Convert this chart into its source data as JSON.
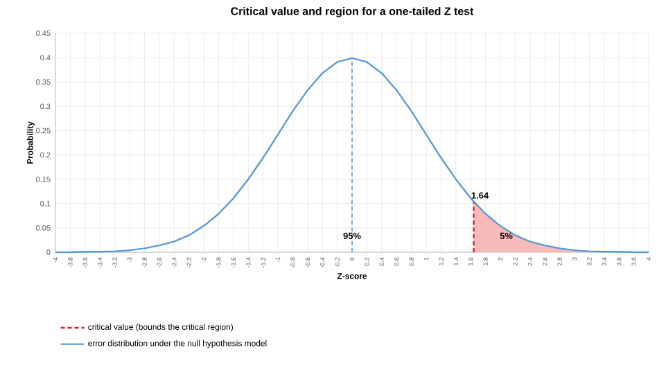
{
  "chart_data": {
    "type": "line",
    "title": "Critical value and region for a one-tailed Z test",
    "xlabel": "Z-score",
    "ylabel": "Probability",
    "xlim": [
      -4,
      4
    ],
    "ylim": [
      0,
      0.45
    ],
    "xticks": [
      -4,
      -3.8,
      -3.6,
      -3.4,
      -3.2,
      -3,
      -2.8,
      -2.6,
      -2.4,
      -2.2,
      -2,
      -1.8,
      -1.6,
      -1.4,
      -1.2,
      -1,
      -0.8,
      -0.6,
      -0.4,
      -0.2,
      0,
      0.2,
      0.4,
      0.6,
      0.8,
      1,
      1.2,
      1.4,
      1.6,
      1.8,
      2,
      2.2,
      2.4,
      2.6,
      2.8,
      3,
      3.2,
      3.4,
      3.6,
      3.8,
      4
    ],
    "yticks": [
      0,
      0.05,
      0.1,
      0.15,
      0.2,
      0.25,
      0.3,
      0.35,
      0.4,
      0.45
    ],
    "grid": true,
    "legend": "bottom",
    "series": [
      {
        "type": "area",
        "color": "#f7b9b9",
        "x": [
          1.64,
          1.8,
          2,
          2.2,
          2.4,
          2.6,
          2.8,
          3,
          3.2,
          3.4,
          3.6,
          3.8,
          4
        ],
        "values": [
          0.104,
          0.079,
          0.054,
          0.035,
          0.022,
          0.014,
          0.008,
          0.004,
          0.002,
          0.001,
          0.001,
          0.0,
          0.0
        ]
      },
      {
        "type": "line",
        "color": "#5b9bd5",
        "line_style": "dashed",
        "x": [
          0,
          0
        ],
        "values": [
          0,
          0.399
        ]
      },
      {
        "type": "line",
        "name": "critical value (bounds the critical region)",
        "color": "#e31a1c",
        "line_style": "dashed",
        "x": [
          1.64,
          1.64
        ],
        "values": [
          0,
          0.104
        ]
      },
      {
        "name": "error distribution under the null hypothesis model",
        "color": "#5b9bd5",
        "line_style": "solid",
        "x": [
          -4,
          -3.8,
          -3.6,
          -3.4,
          -3.2,
          -3,
          -2.8,
          -2.6,
          -2.4,
          -2.2,
          -2,
          -1.8,
          -1.6,
          -1.4,
          -1.2,
          -1,
          -0.8,
          -0.6,
          -0.4,
          -0.2,
          0,
          0.2,
          0.4,
          0.6,
          0.8,
          1,
          1.2,
          1.4,
          1.6,
          1.8,
          2,
          2.2,
          2.4,
          2.6,
          2.8,
          3,
          3.2,
          3.4,
          3.6,
          3.8,
          4
        ],
        "values": [
          0.0,
          0.0,
          0.001,
          0.001,
          0.002,
          0.004,
          0.008,
          0.014,
          0.022,
          0.035,
          0.054,
          0.079,
          0.111,
          0.15,
          0.194,
          0.242,
          0.29,
          0.333,
          0.368,
          0.391,
          0.399,
          0.391,
          0.368,
          0.333,
          0.29,
          0.242,
          0.194,
          0.15,
          0.111,
          0.079,
          0.054,
          0.035,
          0.022,
          0.014,
          0.008,
          0.004,
          0.002,
          0.001,
          0.001,
          0.0,
          0.0
        ]
      }
    ],
    "annotations": [
      {
        "text": "1.64",
        "x": 1.64,
        "y": 0.104
      },
      "95%",
      "5%"
    ]
  }
}
